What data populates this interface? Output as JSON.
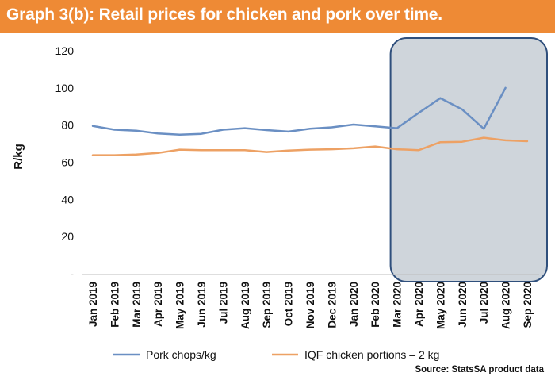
{
  "title": "Graph 3(b): Retail prices for chicken and pork over time.",
  "source": "Source: StatsSA product data",
  "colors": {
    "title_bar": "#ee8a35",
    "pork": "#6a8fc3",
    "chicken": "#eda164",
    "shade": "#cfd5db",
    "shade_border": "#2f4f7c"
  },
  "chart_data": {
    "type": "line",
    "ylabel": "R/kg",
    "xlabel": "",
    "ylim": [
      0,
      120
    ],
    "yticks": [
      0,
      20,
      40,
      60,
      80,
      100,
      120
    ],
    "ytick_labels": [
      "-",
      "20",
      "40",
      "60",
      "80",
      "100",
      "120"
    ],
    "categories": [
      "Jan 2019",
      "Feb 2019",
      "Mar 2019",
      "Apr 2019",
      "May 2019",
      "Jun 2019",
      "Jul 2019",
      "Aug 2019",
      "Sep 2019",
      "Oct 2019",
      "Nov 2019",
      "Dec 2019",
      "Jan 2020",
      "Feb 2020",
      "Mar 2020",
      "Apr 2020",
      "May 2020",
      "Jun 2020",
      "Jul 2020",
      "Aug 2020",
      "Sep 2020"
    ],
    "series": [
      {
        "name": "Pork chops/kg",
        "color": "#6a8fc3",
        "values": [
          79.5,
          77.5,
          77,
          75.5,
          74.8,
          75.3,
          77.5,
          78.3,
          77.3,
          76.5,
          78,
          78.8,
          80.3,
          79.3,
          78.3,
          86.5,
          94.5,
          88.5,
          78,
          100,
          null
        ]
      },
      {
        "name": "IQF chicken portions – 2 kg",
        "color": "#eda164",
        "values": [
          63.8,
          63.8,
          64.2,
          65,
          66.8,
          66.5,
          66.5,
          66.5,
          65.5,
          66.3,
          66.8,
          67,
          67.5,
          68.5,
          67,
          66.5,
          70.8,
          71,
          73.2,
          71.8,
          71.3
        ]
      }
    ],
    "highlight_range": [
      "Mar 2020",
      "Sep 2020"
    ],
    "legend_position": "bottom",
    "grid": false
  }
}
